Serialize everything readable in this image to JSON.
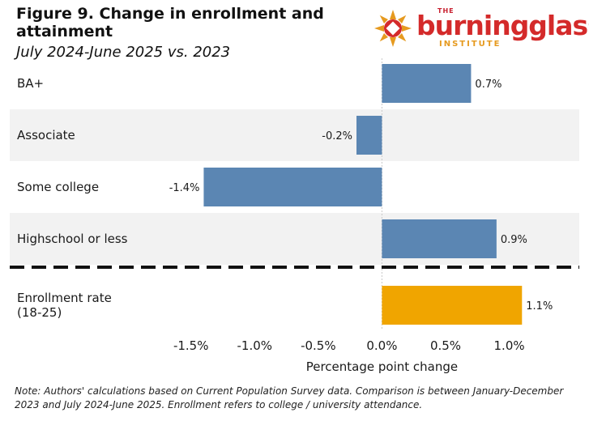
{
  "header": {
    "title": "Figure 9. Change in enrollment and attainment",
    "subtitle": "July 2024-June 2025 vs. 2023"
  },
  "logo": {
    "the": "THE",
    "wordmark": "burningglass",
    "institute": "INSTITUTE",
    "colors": {
      "red": "#d42a2a",
      "orange": "#e69a1f"
    }
  },
  "chart_data": {
    "type": "bar",
    "orientation": "horizontal",
    "categories": [
      "BA+",
      "Associate",
      "Some college",
      "Highschool or less",
      "Enrollment rate\n(18-25)"
    ],
    "values": [
      0.7,
      -0.2,
      -1.4,
      0.9,
      1.1
    ],
    "data_labels": [
      "0.7%",
      "-0.2%",
      "-1.4%",
      "0.9%",
      "1.1%"
    ],
    "bar_colors": [
      "#5b86b3",
      "#5b86b3",
      "#5b86b3",
      "#5b86b3",
      "#f0a500"
    ],
    "xlabel": "Percentage point change",
    "xticks": [
      -1.5,
      -1.0,
      -0.5,
      0.0,
      0.5,
      1.0
    ],
    "xtick_labels": [
      "-1.5%",
      "-1.0%",
      "-0.5%",
      "0.0%",
      "0.5%",
      "1.0%"
    ],
    "xlim": [
      -1.74,
      1.55
    ],
    "separator_after_index": 3,
    "row_shading": [
      false,
      true,
      false,
      true,
      false
    ]
  },
  "note": "Note: Authors' calculations based on Current Population Survey data. Comparison is between January-December 2023 and July 2024-June 2025. Enrollment refers to college / university attendance."
}
